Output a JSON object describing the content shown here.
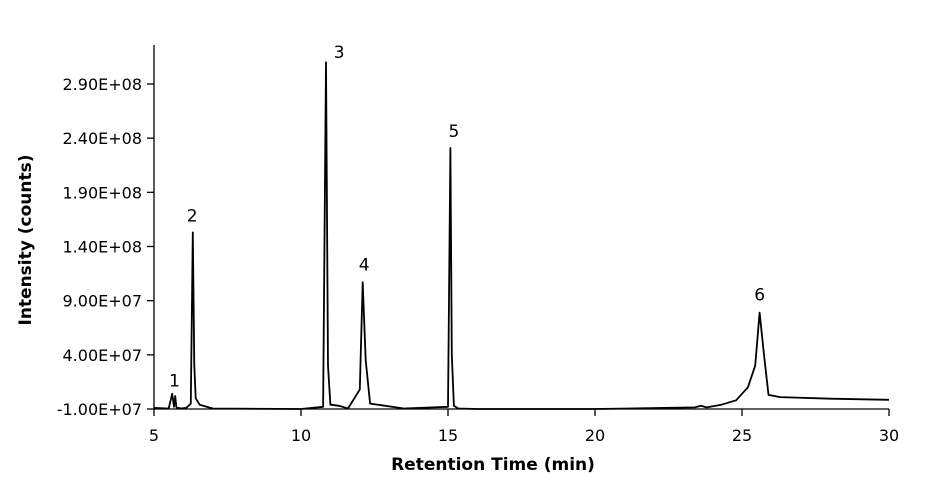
{
  "chart_data": {
    "type": "line",
    "xlabel": "Retention Time (min)",
    "ylabel": "Intensity (counts)",
    "xlim": [
      5,
      30
    ],
    "ylim": [
      -10000000,
      330000000
    ],
    "x_ticks": [
      5,
      10,
      15,
      20,
      25,
      30
    ],
    "x_tick_labels": [
      "5",
      "10",
      "15",
      "20",
      "25",
      "30"
    ],
    "y_ticks": [
      -10000000,
      40000000,
      90000000,
      140000000,
      190000000,
      240000000,
      290000000
    ],
    "y_tick_labels": [
      "-1.00E+07",
      "4.00E+07",
      "9.00E+07",
      "1.40E+08",
      "1.90E+08",
      "2.40E+08",
      "2.90E+08"
    ],
    "baseline": -10000000,
    "series": [
      {
        "x": [
          5.0,
          5.5,
          5.62,
          5.68,
          5.72,
          5.76,
          5.8,
          5.84,
          5.9,
          6.1,
          6.25,
          6.32,
          6.37,
          6.42,
          6.55,
          7.0,
          10.0,
          10.75,
          10.85,
          10.92,
          11.0,
          11.3,
          11.6,
          12.0,
          12.1,
          12.2,
          12.35,
          13.5,
          15.0,
          15.08,
          15.13,
          15.2,
          15.35,
          16.0,
          20.0,
          23.4,
          23.6,
          23.8,
          24.3,
          24.8,
          25.2,
          25.45,
          25.6,
          25.75,
          25.9,
          26.3,
          28.0,
          30.0
        ],
        "y": [
          -9000000,
          -9500000,
          4000000,
          -8000000,
          2000000,
          -8000000,
          -9500000,
          -9000000,
          -9500000,
          -9000000,
          -5000000,
          153000000,
          30000000,
          0,
          -6000000,
          -9500000,
          -10000000,
          -8000000,
          310000000,
          30000000,
          -6000000,
          -7000000,
          -9500000,
          8000000,
          107000000,
          35000000,
          -5000000,
          -9500000,
          -8000000,
          231000000,
          40000000,
          -7000000,
          -9500000,
          -10000000,
          -10000000,
          -8500000,
          -7000000,
          -8500000,
          -6000000,
          -2000000,
          10000000,
          30000000,
          79000000,
          40000000,
          3000000,
          1000000,
          -500000,
          -1500000
        ]
      }
    ],
    "annotations": [
      {
        "label": "1",
        "x": 5.7,
        "y": 11000000
      },
      {
        "label": "2",
        "x": 6.3,
        "y": 163000000
      },
      {
        "label": "3",
        "x": 11.3,
        "y": 314000000
      },
      {
        "label": "4",
        "x": 12.15,
        "y": 118000000
      },
      {
        "label": "5",
        "x": 15.2,
        "y": 241000000
      },
      {
        "label": "6",
        "x": 25.6,
        "y": 90000000
      }
    ]
  }
}
